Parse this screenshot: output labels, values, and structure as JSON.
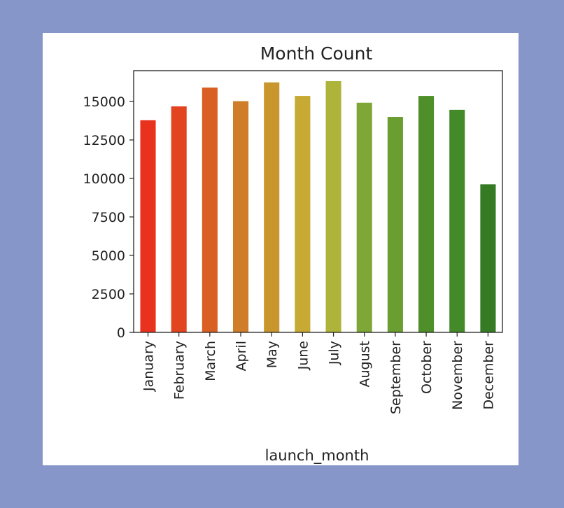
{
  "chart_data": {
    "type": "bar",
    "title": "Month Count",
    "xlabel": "launch_month",
    "ylabel": "",
    "categories": [
      "January",
      "February",
      "March",
      "April",
      "May",
      "June",
      "July",
      "August",
      "September",
      "October",
      "November",
      "December"
    ],
    "values": [
      13780,
      14680,
      15900,
      15020,
      16240,
      15360,
      16320,
      14920,
      14000,
      15360,
      14460,
      9620
    ],
    "colors": [
      "#e8321e",
      "#e2441f",
      "#d95f22",
      "#cf7d28",
      "#c9962e",
      "#c6aa33",
      "#aeb33a",
      "#7ea738",
      "#6b9e30",
      "#4f8f2a",
      "#438a28",
      "#347b23"
    ],
    "yticks": [
      "0",
      "2500",
      "5000",
      "7500",
      "10000",
      "12500",
      "15000"
    ],
    "ylim": [
      0,
      17000
    ],
    "grid": false,
    "legend": "none"
  }
}
